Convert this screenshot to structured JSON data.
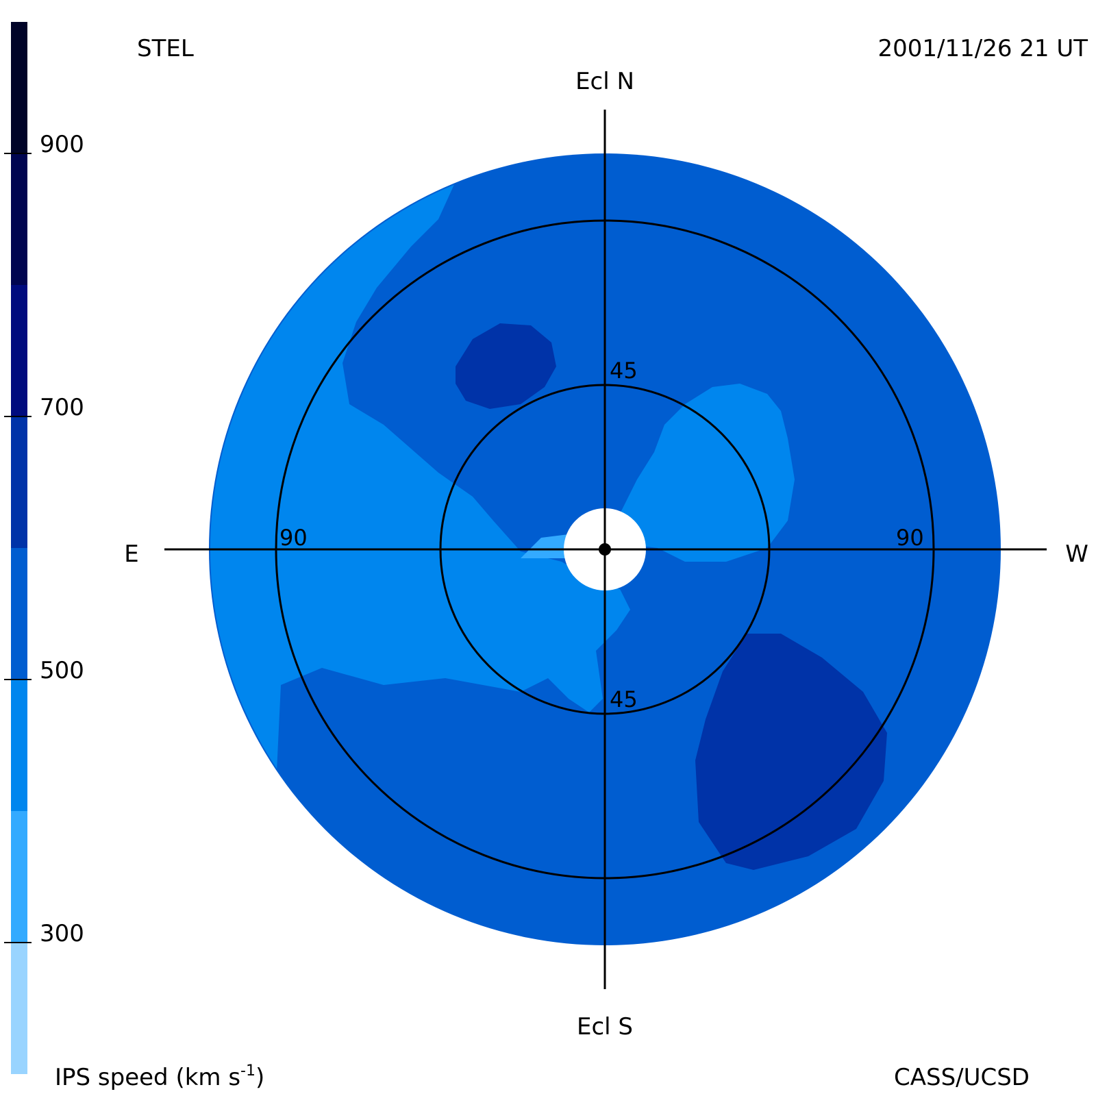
{
  "header": {
    "observatory": "STEL",
    "timestamp": "2001/11/26 21 UT"
  },
  "footer": {
    "colorbar_title": "IPS speed (km s",
    "colorbar_title_exp": "-1",
    "colorbar_title_close": ")",
    "credit": "CASS/UCSD"
  },
  "directions": {
    "north": "Ecl N",
    "south": "Ecl S",
    "east": "E",
    "west": "W"
  },
  "elongation_rings": {
    "inner": {
      "degrees": 45,
      "label_top": "45",
      "label_bottom": "45"
    },
    "outer": {
      "degrees": 90,
      "label_left": "90",
      "label_right": "90"
    }
  },
  "colorbar": {
    "min": 200,
    "max": 1000,
    "bins": [
      {
        "from": 200,
        "to": 300,
        "color": "#99d4ff"
      },
      {
        "from": 300,
        "to": 400,
        "color": "#33aaff"
      },
      {
        "from": 400,
        "to": 500,
        "color": "#0086ee"
      },
      {
        "from": 500,
        "to": 600,
        "color": "#005dd0"
      },
      {
        "from": 600,
        "to": 700,
        "color": "#0033a8"
      },
      {
        "from": 700,
        "to": 800,
        "color": "#000b7e"
      },
      {
        "from": 800,
        "to": 900,
        "color": "#000550"
      },
      {
        "from": 900,
        "to": 1000,
        "color": "#000428"
      }
    ],
    "ticks": [
      {
        "value": 300,
        "label": "300"
      },
      {
        "value": 500,
        "label": "500"
      },
      {
        "value": 700,
        "label": "700"
      },
      {
        "value": 900,
        "label": "900"
      }
    ]
  },
  "map": {
    "background_speed_color": "#005dd0",
    "regions": [
      {
        "name": "northwest-slow-stream",
        "color": "#0086ee"
      },
      {
        "name": "center-slow-stream",
        "color": "#0086ee"
      },
      {
        "name": "northeast-slow-stream",
        "color": "#0086ee"
      },
      {
        "name": "north-fast-patch",
        "color": "#0033a8"
      },
      {
        "name": "southwest-fast-patch",
        "color": "#0033a8"
      },
      {
        "name": "sun-adjacent-slowest-patch",
        "color": "#33aaff"
      }
    ]
  }
}
